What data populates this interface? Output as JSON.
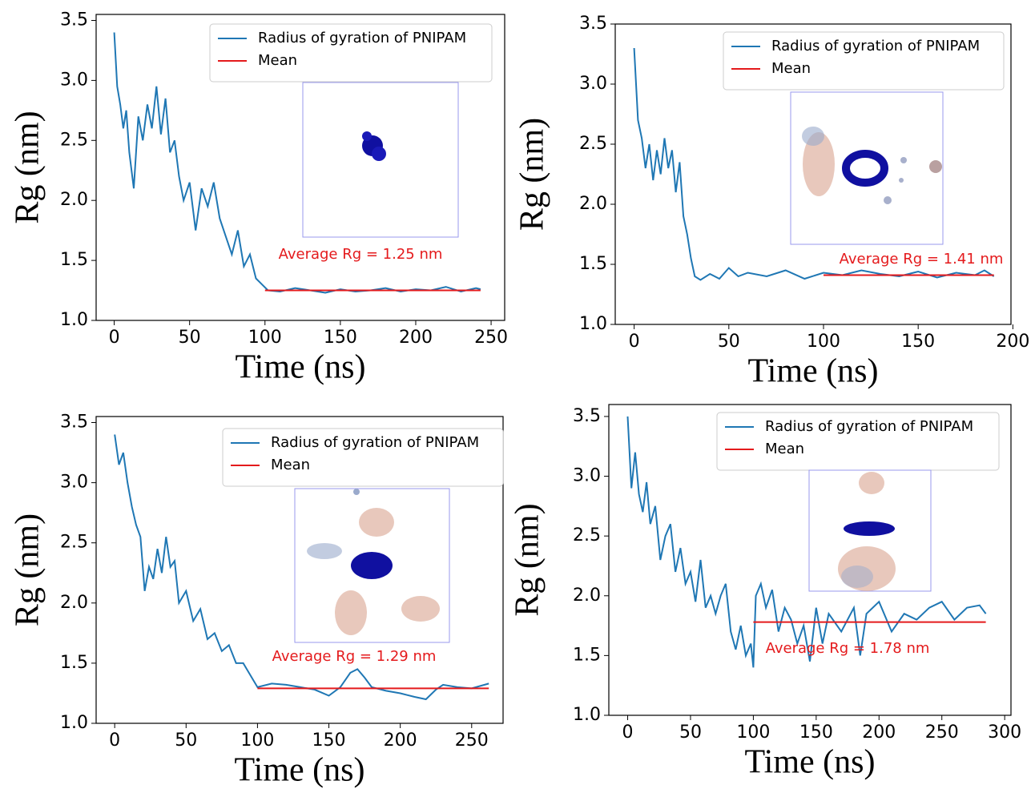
{
  "chart_data": [
    {
      "type": "line",
      "xlabel": "Time (ns)",
      "ylabel": "Rg (nm)",
      "annotation": "Average Rg = 1.25 nm",
      "xlim": [
        -12,
        259
      ],
      "ylim": [
        1.0,
        3.55
      ],
      "xticks": [
        0,
        50,
        100,
        150,
        200,
        250
      ],
      "yticks": [
        {
          "value": 1,
          "label": "1.0"
        },
        1.5,
        {
          "value": 2,
          "label": "2.0"
        },
        2.5,
        {
          "value": 3,
          "label": "3.0"
        },
        3.5
      ],
      "legend": "upper right",
      "series": [
        {
          "name": "Radius of gyration of PNIPAM",
          "color": "#1f77b4",
          "x": [
            0,
            2,
            4,
            6,
            8,
            10,
            13,
            16,
            19,
            22,
            25,
            28,
            31,
            34,
            37,
            40,
            43,
            46,
            50,
            54,
            58,
            62,
            66,
            70,
            74,
            78,
            82,
            86,
            90,
            94,
            98,
            102,
            110,
            120,
            130,
            140,
            150,
            160,
            170,
            180,
            190,
            200,
            210,
            220,
            230,
            240,
            243
          ],
          "values": [
            3.4,
            2.95,
            2.8,
            2.6,
            2.75,
            2.4,
            2.1,
            2.7,
            2.5,
            2.8,
            2.6,
            2.95,
            2.55,
            2.85,
            2.4,
            2.5,
            2.2,
            2.0,
            2.15,
            1.75,
            2.1,
            1.95,
            2.15,
            1.85,
            1.7,
            1.55,
            1.75,
            1.45,
            1.55,
            1.35,
            1.3,
            1.25,
            1.24,
            1.27,
            1.25,
            1.23,
            1.26,
            1.24,
            1.25,
            1.27,
            1.24,
            1.26,
            1.25,
            1.28,
            1.24,
            1.27,
            1.26
          ]
        },
        {
          "name": "Mean",
          "color": "#e41a1c",
          "x": [
            100,
            243
          ],
          "values": [
            1.25,
            1.25
          ]
        }
      ]
    },
    {
      "type": "line",
      "xlabel": "Time (ns)",
      "ylabel": "Rg (nm)",
      "annotation": "Average Rg = 1.41 nm",
      "xlim": [
        -10,
        199
      ],
      "ylim": [
        1.0,
        3.5
      ],
      "xticks": [
        0,
        50,
        100,
        150,
        200
      ],
      "yticks": [
        {
          "value": 1,
          "label": "1.0"
        },
        1.5,
        {
          "value": 2,
          "label": "2.0"
        },
        2.5,
        {
          "value": 3,
          "label": "3.0"
        },
        3.5
      ],
      "legend": "upper right",
      "series": [
        {
          "name": "Radius of gyration of PNIPAM",
          "color": "#1f77b4",
          "x": [
            0,
            2,
            4,
            6,
            8,
            10,
            12,
            14,
            16,
            18,
            20,
            22,
            24,
            26,
            28,
            30,
            32,
            35,
            40,
            45,
            50,
            55,
            60,
            70,
            80,
            90,
            100,
            110,
            120,
            130,
            140,
            150,
            160,
            170,
            180,
            185,
            190
          ],
          "values": [
            3.3,
            2.7,
            2.55,
            2.3,
            2.5,
            2.2,
            2.45,
            2.25,
            2.55,
            2.3,
            2.45,
            2.1,
            2.35,
            1.9,
            1.75,
            1.55,
            1.4,
            1.37,
            1.42,
            1.38,
            1.47,
            1.4,
            1.43,
            1.4,
            1.45,
            1.38,
            1.43,
            1.41,
            1.45,
            1.42,
            1.4,
            1.44,
            1.39,
            1.43,
            1.41,
            1.45,
            1.4
          ]
        },
        {
          "name": "Mean",
          "color": "#e41a1c",
          "x": [
            100,
            190
          ],
          "values": [
            1.41,
            1.41
          ]
        }
      ]
    },
    {
      "type": "line",
      "xlabel": "Time (ns)",
      "ylabel": "Rg (nm)",
      "annotation": "Average Rg = 1.29 nm",
      "xlim": [
        -13,
        272
      ],
      "ylim": [
        1.0,
        3.55
      ],
      "xticks": [
        0,
        50,
        100,
        150,
        200,
        250
      ],
      "yticks": [
        {
          "value": 1,
          "label": "1.0"
        },
        1.5,
        {
          "value": 2,
          "label": "2.0"
        },
        2.5,
        {
          "value": 3,
          "label": "3.0"
        },
        3.5
      ],
      "legend": "upper right",
      "series": [
        {
          "name": "Radius of gyration of PNIPAM",
          "color": "#1f77b4",
          "x": [
            0,
            3,
            6,
            9,
            12,
            15,
            18,
            21,
            24,
            27,
            30,
            33,
            36,
            39,
            42,
            45,
            50,
            55,
            60,
            65,
            70,
            75,
            80,
            85,
            90,
            95,
            100,
            110,
            120,
            130,
            140,
            150,
            158,
            165,
            170,
            175,
            180,
            190,
            200,
            210,
            218,
            225,
            230,
            240,
            250,
            262
          ],
          "values": [
            3.4,
            3.15,
            3.25,
            3.0,
            2.8,
            2.65,
            2.55,
            2.1,
            2.3,
            2.2,
            2.45,
            2.25,
            2.55,
            2.3,
            2.35,
            2.0,
            2.1,
            1.85,
            1.95,
            1.7,
            1.75,
            1.6,
            1.65,
            1.5,
            1.5,
            1.4,
            1.3,
            1.33,
            1.32,
            1.3,
            1.28,
            1.23,
            1.3,
            1.42,
            1.45,
            1.38,
            1.3,
            1.27,
            1.25,
            1.22,
            1.2,
            1.28,
            1.32,
            1.3,
            1.29,
            1.33
          ]
        },
        {
          "name": "Mean",
          "color": "#e41a1c",
          "x": [
            100,
            262
          ],
          "values": [
            1.29,
            1.29
          ]
        }
      ]
    },
    {
      "type": "line",
      "xlabel": "Time (ns)",
      "ylabel": "Rg (nm)",
      "annotation": "Average Rg = 1.78 nm",
      "xlim": [
        -15,
        305
      ],
      "ylim": [
        1.0,
        3.6
      ],
      "xticks": [
        0,
        50,
        100,
        150,
        200,
        250,
        300
      ],
      "yticks": [
        {
          "value": 1,
          "label": "1.0"
        },
        1.5,
        {
          "value": 2,
          "label": "2.0"
        },
        2.5,
        {
          "value": 3,
          "label": "3.0"
        },
        3.5
      ],
      "legend": "upper right",
      "series": [
        {
          "name": "Radius of gyration of PNIPAM",
          "color": "#1f77b4",
          "x": [
            0,
            3,
            6,
            9,
            12,
            15,
            18,
            22,
            26,
            30,
            34,
            38,
            42,
            46,
            50,
            54,
            58,
            62,
            66,
            70,
            74,
            78,
            82,
            86,
            90,
            94,
            98,
            100,
            102,
            106,
            110,
            115,
            120,
            125,
            130,
            135,
            140,
            145,
            150,
            155,
            160,
            170,
            180,
            185,
            190,
            200,
            210,
            220,
            230,
            240,
            250,
            260,
            270,
            280,
            285
          ],
          "values": [
            3.5,
            2.9,
            3.2,
            2.85,
            2.7,
            2.95,
            2.6,
            2.75,
            2.3,
            2.5,
            2.6,
            2.2,
            2.4,
            2.1,
            2.2,
            1.95,
            2.3,
            1.9,
            2.0,
            1.85,
            2.0,
            2.1,
            1.7,
            1.55,
            1.75,
            1.5,
            1.6,
            1.4,
            2.0,
            2.1,
            1.9,
            2.05,
            1.7,
            1.9,
            1.8,
            1.6,
            1.75,
            1.45,
            1.9,
            1.6,
            1.85,
            1.7,
            1.9,
            1.5,
            1.85,
            1.95,
            1.7,
            1.85,
            1.8,
            1.9,
            1.95,
            1.8,
            1.9,
            1.92,
            1.85
          ]
        },
        {
          "name": "Mean",
          "color": "#e41a1c",
          "x": [
            100,
            285
          ],
          "values": [
            1.78,
            1.78
          ]
        }
      ]
    }
  ]
}
